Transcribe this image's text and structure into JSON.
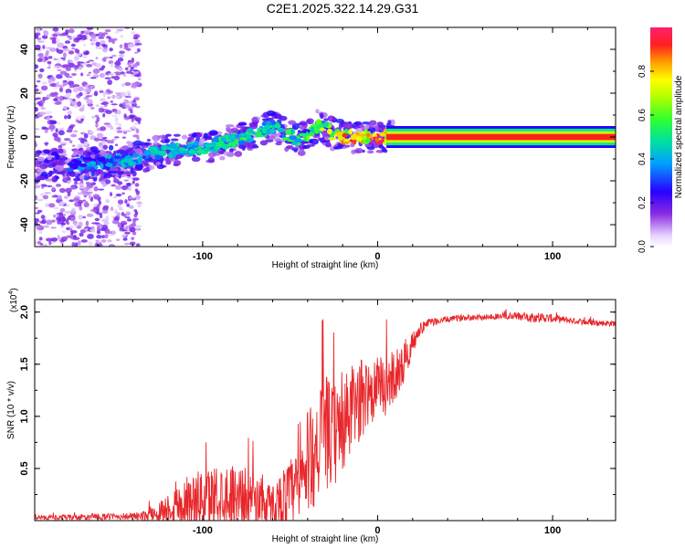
{
  "title": "C2E1.2025.322.14.29.G31",
  "colors": {
    "snr_line": "#e8262a",
    "axis": "#000000",
    "background": "#ffffff"
  },
  "colorbar": {
    "label": "Normalized spectral amplitude",
    "ticks": [
      "0.0",
      "0.2",
      "0.4",
      "0.6",
      "0.8"
    ],
    "range": [
      0,
      1
    ]
  },
  "chart_data": [
    {
      "type": "heatmap",
      "name": "spectrogram",
      "xlabel": "Height of straight line (km)",
      "ylabel": "Frequency (Hz)",
      "xlim": [
        -196,
        136
      ],
      "ylim": [
        -50,
        50
      ],
      "x_ticks": [
        "-100",
        "0",
        "100"
      ],
      "y_ticks": [
        "-40",
        "-20",
        "0",
        "20",
        "40"
      ],
      "ridge": {
        "description": "frequency of the dominant spectral ridge vs height",
        "x": [
          -195,
          -180,
          -160,
          -140,
          -120,
          -100,
          -80,
          -60,
          -45,
          -35,
          -30,
          -25,
          -20,
          -10,
          0,
          5,
          50,
          100,
          135
        ],
        "y": [
          -13,
          -13,
          -12,
          -10,
          -6,
          -5,
          -1,
          5,
          -2,
          5,
          4,
          1,
          0,
          0,
          0,
          0,
          0,
          0,
          0
        ],
        "amplitude": [
          0.3,
          0.35,
          0.4,
          0.45,
          0.5,
          0.5,
          0.55,
          0.55,
          0.6,
          0.7,
          0.75,
          0.85,
          0.9,
          0.9,
          0.95,
          1.0,
          1.0,
          1.0,
          1.0
        ]
      }
    },
    {
      "type": "line",
      "name": "snr",
      "xlabel": "Height of straight line (km)",
      "ylabel": "SNR (10 * v/v)",
      "multiplier": "(x10",
      "multiplier_exp": "4",
      "multiplier_close": ")",
      "xlim": [
        -196,
        136
      ],
      "ylim": [
        0,
        2.12
      ],
      "x_ticks": [
        "-100",
        "0",
        "100"
      ],
      "y_ticks": [
        "0.5",
        "1.0",
        "1.5",
        "2.0"
      ],
      "series": [
        {
          "name": "SNR",
          "x": [
            -196,
            -170,
            -150,
            -135,
            -125,
            -115,
            -100,
            -90,
            -80,
            -70,
            -60,
            -50,
            -45,
            -40,
            -35,
            -30,
            -25,
            -20,
            -15,
            -10,
            -5,
            0,
            5,
            10,
            15,
            20,
            25,
            30,
            40,
            50,
            60,
            70,
            80,
            90,
            100,
            110,
            120,
            136
          ],
          "value": [
            0.03,
            0.03,
            0.04,
            0.04,
            0.08,
            0.15,
            0.2,
            0.25,
            0.25,
            0.2,
            0.15,
            0.25,
            0.3,
            0.55,
            0.7,
            0.85,
            0.8,
            0.9,
            1.05,
            1.15,
            1.25,
            1.25,
            1.3,
            1.4,
            1.5,
            1.7,
            1.85,
            1.9,
            1.93,
            1.95,
            1.95,
            1.96,
            1.96,
            1.95,
            1.94,
            1.92,
            1.9,
            1.89
          ],
          "spread": [
            0.02,
            0.03,
            0.03,
            0.04,
            0.1,
            0.2,
            0.3,
            0.3,
            0.3,
            0.25,
            0.2,
            0.35,
            0.4,
            0.5,
            0.55,
            0.55,
            0.5,
            0.45,
            0.45,
            0.4,
            0.35,
            0.3,
            0.3,
            0.25,
            0.2,
            0.1,
            0.06,
            0.04,
            0.03,
            0.03,
            0.03,
            0.03,
            0.04,
            0.05,
            0.04,
            0.03,
            0.03,
            0.03
          ]
        }
      ]
    }
  ]
}
